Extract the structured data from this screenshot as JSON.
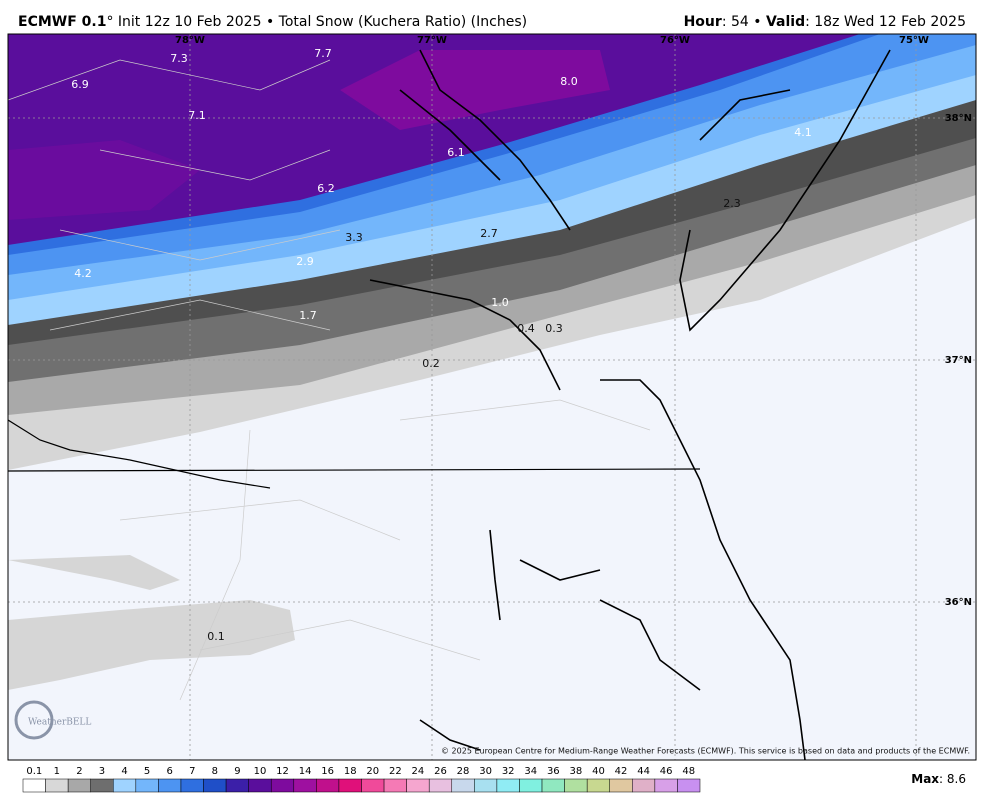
{
  "header": {
    "model": "ECMWF 0.1",
    "degree": "°",
    "init": "Init 12z 10 Feb 2025",
    "separator": "•",
    "product": "Total Snow (Kuchera Ratio) (Inches)",
    "hour_label": "Hour",
    "hour": ": 54",
    "valid_label": "Valid",
    "valid": ": 18z Wed 12 Feb 2025"
  },
  "map": {
    "lon_labels": [
      "78°W",
      "77°W",
      "76°W",
      "75°W"
    ],
    "lat_labels": [
      "38°N",
      "37°N",
      "36°N"
    ],
    "snow_labels": [
      "7.3",
      "7.7",
      "6.9",
      "7.1",
      "8.0",
      "6.1",
      "4.1",
      "6.2",
      "2.3",
      "3.3",
      "2.7",
      "2.9",
      "4.2",
      "1.0",
      "1.7",
      "0.4",
      "0.3",
      "0.2",
      "0.1"
    ],
    "watermark": "WeatherBELL",
    "copyright": "© 2025 European Centre for Medium-Range Weather Forecasts (ECMWF). This service is based on data and products of the ECMWF."
  },
  "colorbar": {
    "labels": [
      "0.1",
      "1",
      "2",
      "3",
      "4",
      "5",
      "6",
      "7",
      "8",
      "9",
      "10",
      "12",
      "14",
      "16",
      "18",
      "20",
      "22",
      "24",
      "26",
      "28",
      "30",
      "32",
      "34",
      "36",
      "38",
      "40",
      "42",
      "44",
      "46",
      "48"
    ],
    "colors": [
      "#ffffff",
      "#d8d8d8",
      "#a8a8a8",
      "#6e6e6e",
      "#9fd3ff",
      "#73b6fb",
      "#4d94f2",
      "#2f6fe0",
      "#1f4fc8",
      "#3b1fa8",
      "#5a0e9c",
      "#7e0b9e",
      "#9e10a0",
      "#c0108c",
      "#e0107a",
      "#f04a9a",
      "#f57ab5",
      "#f5a6cf",
      "#e8c0e0",
      "#c8d8ec",
      "#a8e0f0",
      "#90ecf4",
      "#80f0e0",
      "#90e8c0",
      "#b0e0a0",
      "#c8d890",
      "#e0c8a0",
      "#e0b0c8",
      "#d8a0e8",
      "#c890f0"
    ],
    "max_label": "Max",
    "max_value": ": 8.6"
  }
}
